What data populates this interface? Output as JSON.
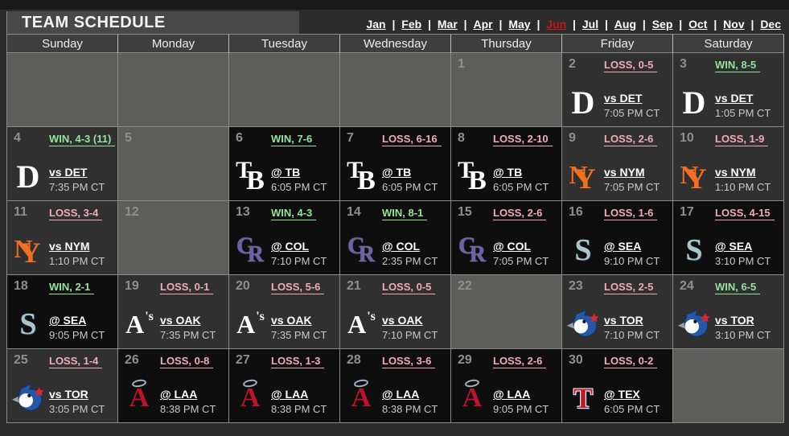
{
  "title": "TEAM SCHEDULE",
  "months": {
    "items": [
      "Jan",
      "Feb",
      "Mar",
      "Apr",
      "May",
      "Jun",
      "Jul",
      "Aug",
      "Sep",
      "Oct",
      "Nov",
      "Dec"
    ],
    "active": "Jun",
    "separator": "|"
  },
  "day_headers": [
    "Sunday",
    "Monday",
    "Tuesday",
    "Wednesday",
    "Thursday",
    "Friday",
    "Saturday"
  ],
  "colors": {
    "win_text": "#93e49c",
    "loss_text": "#f2abb6",
    "active_month": "#c0181d",
    "home_cell_bg": "#303030",
    "away_cell_bg": "#0e0e0e",
    "empty_cell_bg": "#5d5d59"
  },
  "logo_colors": {
    "det": "#ffffff",
    "tb": "#ffffff",
    "nym": "#f26f21",
    "col": "#6e61ab",
    "sea": "#a9c6c9",
    "oak": "#ffffff",
    "laa": "#bf1229",
    "tex": "#c01723",
    "tor": "#2458a7"
  },
  "weeks": [
    [
      {
        "type": "blank"
      },
      {
        "type": "blank"
      },
      {
        "type": "blank"
      },
      {
        "type": "blank"
      },
      {
        "type": "open",
        "day": "1"
      },
      {
        "type": "home",
        "day": "2",
        "result": "LOSS, 0-5",
        "outcome": "loss",
        "opponent": "vs DET",
        "time": "7:05 PM CT",
        "logo": "det"
      },
      {
        "type": "home",
        "day": "3",
        "result": "WIN, 8-5",
        "outcome": "win",
        "opponent": "vs DET",
        "time": "1:05 PM CT",
        "logo": "det"
      }
    ],
    [
      {
        "type": "home",
        "day": "4",
        "result": "WIN, 4-3 (11)",
        "outcome": "win",
        "opponent": "vs DET",
        "time": "7:35 PM CT",
        "logo": "det"
      },
      {
        "type": "open",
        "day": "5"
      },
      {
        "type": "away",
        "day": "6",
        "result": "WIN, 7-6",
        "outcome": "win",
        "opponent": "@ TB",
        "time": "6:05 PM CT",
        "logo": "tb"
      },
      {
        "type": "away",
        "day": "7",
        "result": "LOSS, 6-16",
        "outcome": "loss",
        "opponent": "@ TB",
        "time": "6:05 PM CT",
        "logo": "tb"
      },
      {
        "type": "away",
        "day": "8",
        "result": "LOSS, 2-10",
        "outcome": "loss",
        "opponent": "@ TB",
        "time": "6:05 PM CT",
        "logo": "tb"
      },
      {
        "type": "home",
        "day": "9",
        "result": "LOSS, 2-6",
        "outcome": "loss",
        "opponent": "vs NYM",
        "time": "7:05 PM CT",
        "logo": "nym"
      },
      {
        "type": "home",
        "day": "10",
        "result": "LOSS, 1-9",
        "outcome": "loss",
        "opponent": "vs NYM",
        "time": "1:10 PM CT",
        "logo": "nym"
      }
    ],
    [
      {
        "type": "home",
        "day": "11",
        "result": "LOSS, 3-4",
        "outcome": "loss",
        "opponent": "vs NYM",
        "time": "1:10 PM CT",
        "logo": "nym"
      },
      {
        "type": "open",
        "day": "12"
      },
      {
        "type": "away",
        "day": "13",
        "result": "WIN, 4-3",
        "outcome": "win",
        "opponent": "@ COL",
        "time": "7:10 PM CT",
        "logo": "col"
      },
      {
        "type": "away",
        "day": "14",
        "result": "WIN, 8-1",
        "outcome": "win",
        "opponent": "@ COL",
        "time": "2:35 PM CT",
        "logo": "col"
      },
      {
        "type": "away",
        "day": "15",
        "result": "LOSS, 2-6",
        "outcome": "loss",
        "opponent": "@ COL",
        "time": "7:05 PM CT",
        "logo": "col"
      },
      {
        "type": "away",
        "day": "16",
        "result": "LOSS, 1-6",
        "outcome": "loss",
        "opponent": "@ SEA",
        "time": "9:10 PM CT",
        "logo": "sea"
      },
      {
        "type": "away",
        "day": "17",
        "result": "LOSS, 4-15",
        "outcome": "loss",
        "opponent": "@ SEA",
        "time": "3:10 PM CT",
        "logo": "sea"
      }
    ],
    [
      {
        "type": "away",
        "day": "18",
        "result": "WIN, 2-1",
        "outcome": "win",
        "opponent": "@ SEA",
        "time": "9:05 PM CT",
        "logo": "sea"
      },
      {
        "type": "home",
        "day": "19",
        "result": "LOSS, 0-1",
        "outcome": "loss",
        "opponent": "vs OAK",
        "time": "7:35 PM CT",
        "logo": "oak"
      },
      {
        "type": "home",
        "day": "20",
        "result": "LOSS, 5-6",
        "outcome": "loss",
        "opponent": "vs OAK",
        "time": "7:35 PM CT",
        "logo": "oak"
      },
      {
        "type": "home",
        "day": "21",
        "result": "LOSS, 0-5",
        "outcome": "loss",
        "opponent": "vs OAK",
        "time": "7:10 PM CT",
        "logo": "oak"
      },
      {
        "type": "open",
        "day": "22"
      },
      {
        "type": "home",
        "day": "23",
        "result": "LOSS, 2-5",
        "outcome": "loss",
        "opponent": "vs TOR",
        "time": "7:10 PM CT",
        "logo": "tor"
      },
      {
        "type": "home",
        "day": "24",
        "result": "WIN, 6-5",
        "outcome": "win",
        "opponent": "vs TOR",
        "time": "3:10 PM CT",
        "logo": "tor"
      }
    ],
    [
      {
        "type": "home",
        "day": "25",
        "result": "LOSS, 1-4",
        "outcome": "loss",
        "opponent": "vs TOR",
        "time": "3:05 PM CT",
        "logo": "tor"
      },
      {
        "type": "away",
        "day": "26",
        "result": "LOSS, 0-8",
        "outcome": "loss",
        "opponent": "@ LAA",
        "time": "8:38 PM CT",
        "logo": "laa"
      },
      {
        "type": "away",
        "day": "27",
        "result": "LOSS, 1-3",
        "outcome": "loss",
        "opponent": "@ LAA",
        "time": "8:38 PM CT",
        "logo": "laa"
      },
      {
        "type": "away",
        "day": "28",
        "result": "LOSS, 3-6",
        "outcome": "loss",
        "opponent": "@ LAA",
        "time": "8:38 PM CT",
        "logo": "laa"
      },
      {
        "type": "away",
        "day": "29",
        "result": "LOSS, 2-6",
        "outcome": "loss",
        "opponent": "@ LAA",
        "time": "9:05 PM CT",
        "logo": "laa"
      },
      {
        "type": "away",
        "day": "30",
        "result": "LOSS, 0-2",
        "outcome": "loss",
        "opponent": "@ TEX",
        "time": "6:05 PM CT",
        "logo": "tex"
      },
      {
        "type": "blank"
      }
    ]
  ]
}
